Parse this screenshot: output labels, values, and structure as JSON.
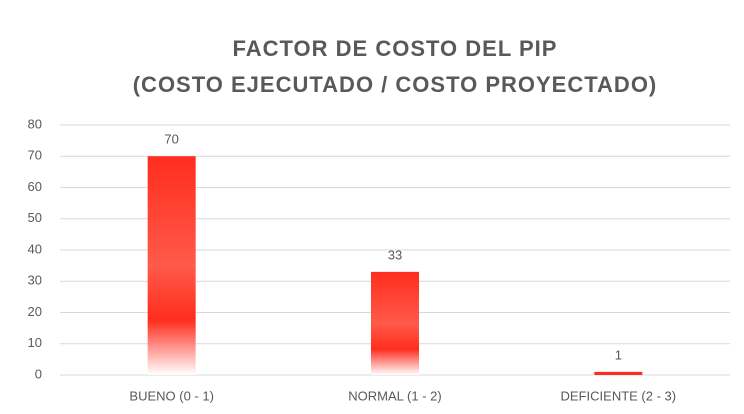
{
  "chart_data": {
    "type": "bar",
    "title": [
      "FACTOR DE COSTO DEL PIP",
      "(COSTO EJECUTADO / COSTO  PROYECTADO)"
    ],
    "categories": [
      "BUENO (0 - 1)",
      "NORMAL (1 - 2)",
      "DEFICIENTE (2 - 3)"
    ],
    "values": [
      70,
      33,
      1
    ],
    "color": "#ff2d1e",
    "ylim": [
      0,
      80
    ],
    "yticks": [
      0,
      10,
      20,
      30,
      40,
      50,
      60,
      70,
      80
    ],
    "grid": true
  }
}
